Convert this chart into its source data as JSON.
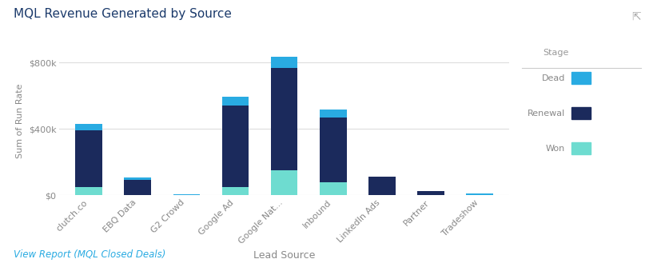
{
  "title": "MQL Revenue Generated by Source",
  "xlabel": "Lead Source",
  "ylabel": "Sum of Run Rate",
  "link_text": "View Report (MQL Closed Deals)",
  "legend_title": "Stage",
  "categories": [
    "clutch.co",
    "EBQ Data",
    "G2 Crowd",
    "Google Ad",
    "Google Nat...",
    "Inbound",
    "LinkedIn Ads",
    "Partner",
    "Tradeshow"
  ],
  "stages": [
    "Won",
    "Renewal",
    "Dead"
  ],
  "colors": {
    "Dead": "#29ABE2",
    "Renewal": "#1B2A5C",
    "Won": "#6EDCD0"
  },
  "data": {
    "Won": [
      50000,
      0,
      0,
      50000,
      150000,
      80000,
      0,
      0,
      0
    ],
    "Renewal": [
      340000,
      90000,
      0,
      490000,
      620000,
      390000,
      110000,
      25000,
      0
    ],
    "Dead": [
      40000,
      15000,
      5000,
      55000,
      65000,
      45000,
      0,
      0,
      8000
    ]
  },
  "ylim": [
    0,
    900000
  ],
  "yticks": [
    0,
    400000,
    800000
  ],
  "ytick_labels": [
    "$0",
    "$400k",
    "$800k"
  ],
  "background_color": "#ffffff",
  "plot_bg_color": "#ffffff",
  "grid_color": "#dddddd",
  "title_color": "#1B3A6B",
  "axis_label_color": "#888888",
  "tick_label_color": "#888888",
  "legend_title_color": "#999999",
  "legend_label_color": "#888888",
  "link_color": "#29ABE2"
}
